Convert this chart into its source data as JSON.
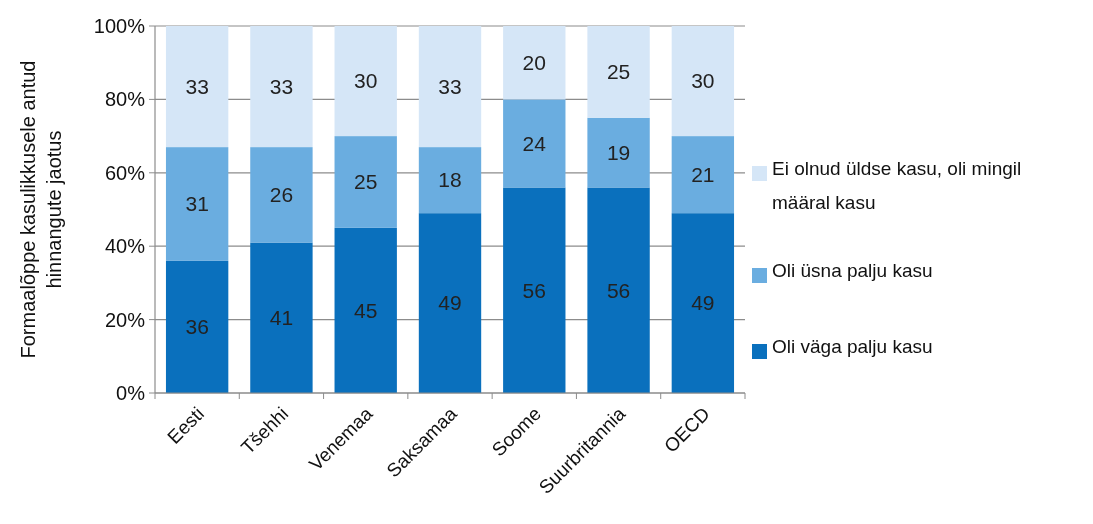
{
  "chart_data": {
    "type": "bar",
    "stacked": true,
    "ylabel": "Formaalõppe kasulikkusele antud hinnangute jaotus",
    "categories": [
      "Eesti",
      "Tšehhi",
      "Venemaa",
      "Saksamaa",
      "Soome",
      "Suurbritannia",
      "OECD"
    ],
    "series": [
      {
        "name": "Oli väga palju kasu",
        "color": "#0a70bd",
        "values": [
          36,
          41,
          45,
          49,
          56,
          56,
          49
        ]
      },
      {
        "name": "Oli üsna palju kasu",
        "color": "#6aade0",
        "values": [
          31,
          26,
          25,
          18,
          24,
          19,
          21
        ]
      },
      {
        "name": "Ei olnud üldse kasu, oli mingil määral kasu",
        "color": "#d5e6f7",
        "values": [
          33,
          33,
          30,
          33,
          20,
          25,
          30
        ]
      }
    ],
    "ylim": [
      0,
      100
    ],
    "yticks": [
      {
        "value": 0,
        "label": "0%"
      },
      {
        "value": 20,
        "label": "20%"
      },
      {
        "value": 40,
        "label": "40%"
      },
      {
        "value": 60,
        "label": "60%"
      },
      {
        "value": 80,
        "label": "80%"
      },
      {
        "value": 100,
        "label": "100%"
      }
    ],
    "grid": "y",
    "legend": "right",
    "data_labels": true
  }
}
